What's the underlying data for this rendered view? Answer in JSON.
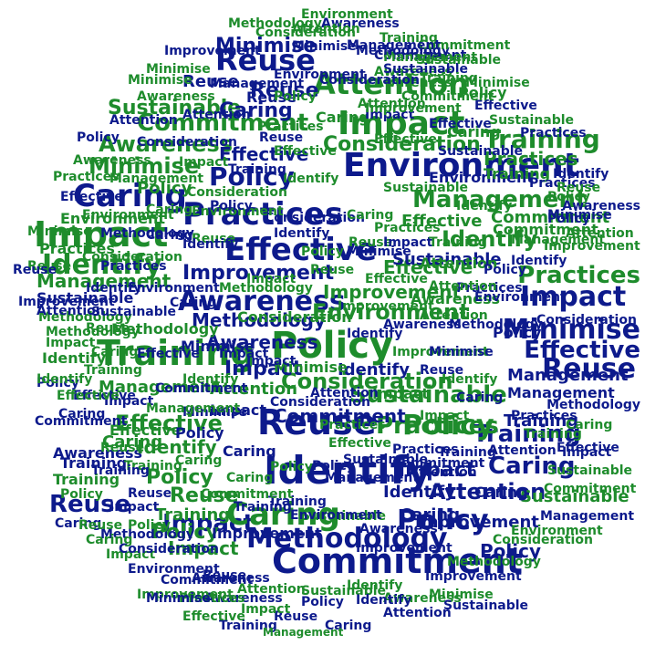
{
  "colors": {
    "blue": "#0d1a8c",
    "green": "#1e8c2c",
    "background": "#ffffff"
  },
  "words": [
    {
      "text": "Environment",
      "color": "blue"
    },
    {
      "text": "Commitment",
      "color": "blue"
    },
    {
      "text": "Identify",
      "color": "blue"
    },
    {
      "text": "Effective",
      "color": "blue"
    },
    {
      "text": "Practices",
      "color": "blue"
    },
    {
      "text": "Training",
      "color": "green"
    },
    {
      "text": "Policy",
      "color": "green"
    },
    {
      "text": "Impact",
      "color": "green"
    },
    {
      "text": "Reuse",
      "color": "blue"
    },
    {
      "text": "Caring",
      "color": "blue"
    },
    {
      "text": "Attention",
      "color": "green"
    },
    {
      "text": "Awareness",
      "color": "blue"
    },
    {
      "text": "Consideration",
      "color": "green"
    },
    {
      "text": "Management",
      "color": "green"
    },
    {
      "text": "Methodology",
      "color": "blue"
    },
    {
      "text": "Minimise",
      "color": "blue"
    },
    {
      "text": "Sustainable",
      "color": "green"
    },
    {
      "text": "Improvement",
      "color": "blue"
    },
    {
      "text": "Reuse",
      "color": "blue"
    },
    {
      "text": "Policy",
      "color": "blue"
    },
    {
      "text": "Impact",
      "color": "blue"
    },
    {
      "text": "Impact",
      "color": "blue"
    },
    {
      "text": "Caring",
      "color": "green"
    },
    {
      "text": "Policy",
      "color": "blue"
    },
    {
      "text": "Identify",
      "color": "green"
    },
    {
      "text": "Training",
      "color": "green"
    },
    {
      "text": "Sustainable",
      "color": "green"
    },
    {
      "text": "Reuse",
      "color": "blue"
    },
    {
      "text": "Attention",
      "color": "blue"
    },
    {
      "text": "Commitment",
      "color": "green"
    },
    {
      "text": "Minimise",
      "color": "blue"
    },
    {
      "text": "Effective",
      "color": "blue"
    },
    {
      "text": "Reuse",
      "color": "blue"
    },
    {
      "text": "Caring",
      "color": "blue"
    },
    {
      "text": "Training",
      "color": "blue"
    },
    {
      "text": "Practices",
      "color": "green"
    },
    {
      "text": "Management",
      "color": "green"
    },
    {
      "text": "Awareness",
      "color": "green"
    },
    {
      "text": "Policy",
      "color": "green"
    },
    {
      "text": "Impact",
      "color": "green"
    },
    {
      "text": "Effective",
      "color": "green"
    },
    {
      "text": "Identify",
      "color": "green"
    },
    {
      "text": "Minimise",
      "color": "green"
    },
    {
      "text": "Practices",
      "color": "green"
    },
    {
      "text": "Attention",
      "color": "green"
    },
    {
      "text": "Methodology",
      "color": "blue"
    },
    {
      "text": "Environment",
      "color": "green"
    },
    {
      "text": "Consideration",
      "color": "green"
    },
    {
      "text": "Improvement",
      "color": "blue"
    },
    {
      "text": "Sustainable",
      "color": "green"
    },
    {
      "text": "Commitment",
      "color": "green"
    },
    {
      "text": "Management",
      "color": "blue"
    },
    {
      "text": "Training",
      "color": "green"
    },
    {
      "text": "Caring",
      "color": "blue"
    },
    {
      "text": "Policy",
      "color": "green"
    },
    {
      "text": "Impact",
      "color": "blue"
    },
    {
      "text": "Reuse",
      "color": "blue"
    },
    {
      "text": "Awareness",
      "color": "blue"
    },
    {
      "text": "Identify",
      "color": "green"
    },
    {
      "text": "Attention",
      "color": "blue"
    },
    {
      "text": "Effective",
      "color": "green"
    },
    {
      "text": "Caring",
      "color": "green"
    },
    {
      "text": "Policy",
      "color": "blue"
    },
    {
      "text": "Minimise",
      "color": "blue"
    },
    {
      "text": "Practices",
      "color": "green"
    },
    {
      "text": "Reuse",
      "color": "blue"
    },
    {
      "text": "Training",
      "color": "blue"
    },
    {
      "text": "Impact",
      "color": "blue"
    },
    {
      "text": "Consideration",
      "color": "blue"
    },
    {
      "text": "Management",
      "color": "green"
    },
    {
      "text": "Caring",
      "color": "green"
    },
    {
      "text": "Commitment",
      "color": "blue"
    },
    {
      "text": "Effective",
      "color": "green"
    },
    {
      "text": "Awareness",
      "color": "blue"
    },
    {
      "text": "Identify",
      "color": "blue"
    },
    {
      "text": "Policy",
      "color": "blue"
    },
    {
      "text": "Sustainable",
      "color": "blue"
    },
    {
      "text": "Methodology",
      "color": "green"
    },
    {
      "text": "Environment",
      "color": "blue"
    },
    {
      "text": "Improvement",
      "color": "green"
    },
    {
      "text": "Training",
      "color": "green"
    },
    {
      "text": "Caring",
      "color": "blue"
    },
    {
      "text": "Reuse",
      "color": "green"
    },
    {
      "text": "Attention",
      "color": "green"
    },
    {
      "text": "Impact",
      "color": "green"
    },
    {
      "text": "Policy",
      "color": "green"
    },
    {
      "text": "Effective",
      "color": "blue"
    },
    {
      "text": "Practices",
      "color": "blue"
    },
    {
      "text": "Minimise",
      "color": "green"
    },
    {
      "text": "Sustainable",
      "color": "blue"
    },
    {
      "text": "Awareness",
      "color": "green"
    },
    {
      "text": "Identify",
      "color": "green"
    },
    {
      "text": "Caring",
      "color": "blue"
    },
    {
      "text": "Training",
      "color": "blue"
    },
    {
      "text": "Policy",
      "color": "green"
    },
    {
      "text": "Reuse",
      "color": "blue"
    },
    {
      "text": "Impact",
      "color": "green"
    },
    {
      "text": "Management",
      "color": "blue"
    },
    {
      "text": "Commitment",
      "color": "green"
    },
    {
      "text": "Attention",
      "color": "blue"
    },
    {
      "text": "Effective",
      "color": "green"
    },
    {
      "text": "Consideration",
      "color": "green"
    },
    {
      "text": "Environment",
      "color": "green"
    },
    {
      "text": "Methodology",
      "color": "green"
    },
    {
      "text": "Improvement",
      "color": "blue"
    },
    {
      "text": "Caring",
      "color": "green"
    },
    {
      "text": "Identify",
      "color": "blue"
    },
    {
      "text": "Policy",
      "color": "blue"
    },
    {
      "text": "Practices",
      "color": "green"
    },
    {
      "text": "Reuse",
      "color": "green"
    },
    {
      "text": "Impact",
      "color": "blue"
    },
    {
      "text": "Training",
      "color": "green"
    },
    {
      "text": "Minimise",
      "color": "blue"
    },
    {
      "text": "Awareness",
      "color": "blue"
    },
    {
      "text": "Sustainable",
      "color": "green"
    },
    {
      "text": "Attention",
      "color": "green"
    },
    {
      "text": "Effective",
      "color": "blue"
    },
    {
      "text": "Caring",
      "color": "blue"
    },
    {
      "text": "Policy",
      "color": "green"
    },
    {
      "text": "Identify",
      "color": "blue"
    },
    {
      "text": "Reuse",
      "color": "green"
    },
    {
      "text": "Impact",
      "color": "blue"
    },
    {
      "text": "Commitment",
      "color": "blue"
    },
    {
      "text": "Management",
      "color": "green"
    },
    {
      "text": "Training",
      "color": "blue"
    },
    {
      "text": "Practices",
      "color": "blue"
    },
    {
      "text": "Consideration",
      "color": "blue"
    },
    {
      "text": "Environment",
      "color": "blue"
    },
    {
      "text": "Methodology",
      "color": "blue"
    },
    {
      "text": "Improvement",
      "color": "green"
    },
    {
      "text": "Caring",
      "color": "green"
    },
    {
      "text": "Policy",
      "color": "blue"
    },
    {
      "text": "Minimise",
      "color": "green"
    },
    {
      "text": "Awareness",
      "color": "green"
    },
    {
      "text": "Effective",
      "color": "green"
    },
    {
      "text": "Identify",
      "color": "green"
    },
    {
      "text": "Attention",
      "color": "blue"
    },
    {
      "text": "Sustainable",
      "color": "blue"
    },
    {
      "text": "Reuse",
      "color": "blue"
    },
    {
      "text": "Impact",
      "color": "green"
    },
    {
      "text": "Training",
      "color": "green"
    },
    {
      "text": "Caring",
      "color": "blue"
    },
    {
      "text": "Policy",
      "color": "blue"
    },
    {
      "text": "Practices",
      "color": "green"
    },
    {
      "text": "Commitment",
      "color": "green"
    },
    {
      "text": "Management",
      "color": "blue"
    },
    {
      "text": "Effective",
      "color": "blue"
    },
    {
      "text": "Identify",
      "color": "blue"
    },
    {
      "text": "Minimise",
      "color": "blue"
    },
    {
      "text": "Awareness",
      "color": "blue"
    },
    {
      "text": "Environment",
      "color": "green"
    },
    {
      "text": "Consideration",
      "color": "green"
    },
    {
      "text": "Methodology",
      "color": "green"
    },
    {
      "text": "Improvement",
      "color": "blue"
    },
    {
      "text": "Attention",
      "color": "green"
    },
    {
      "text": "Sustainable",
      "color": "green"
    },
    {
      "text": "Reuse",
      "color": "green"
    },
    {
      "text": "Caring",
      "color": "green"
    },
    {
      "text": "Impact",
      "color": "blue"
    },
    {
      "text": "Policy",
      "color": "green"
    },
    {
      "text": "Training",
      "color": "blue"
    },
    {
      "text": "Identify",
      "color": "green"
    },
    {
      "text": "Effective",
      "color": "green"
    },
    {
      "text": "Practices",
      "color": "blue"
    },
    {
      "text": "Reuse",
      "color": "blue"
    },
    {
      "text": "Caring",
      "color": "blue"
    },
    {
      "text": "Impact",
      "color": "green"
    },
    {
      "text": "Policy",
      "color": "blue"
    },
    {
      "text": "Minimise",
      "color": "green"
    },
    {
      "text": "Awareness",
      "color": "green"
    },
    {
      "text": "Commitment",
      "color": "blue"
    },
    {
      "text": "Management",
      "color": "green"
    },
    {
      "text": "Attention",
      "color": "blue"
    },
    {
      "text": "Sustainable",
      "color": "blue"
    },
    {
      "text": "Training",
      "color": "green"
    },
    {
      "text": "Identify",
      "color": "blue"
    },
    {
      "text": "Effective",
      "color": "blue"
    },
    {
      "text": "Reuse",
      "color": "green"
    },
    {
      "text": "Caring",
      "color": "green"
    },
    {
      "text": "Policy",
      "color": "green"
    },
    {
      "text": "Impact",
      "color": "blue"
    },
    {
      "text": "Environment",
      "color": "blue"
    },
    {
      "text": "Consideration",
      "color": "blue"
    },
    {
      "text": "Methodology",
      "color": "blue"
    },
    {
      "text": "Improvement",
      "color": "green"
    },
    {
      "text": "Practices",
      "color": "green"
    },
    {
      "text": "Minimise",
      "color": "blue"
    },
    {
      "text": "Awareness",
      "color": "blue"
    },
    {
      "text": "Identify",
      "color": "green"
    },
    {
      "text": "Training",
      "color": "blue"
    },
    {
      "text": "Reuse",
      "color": "blue"
    },
    {
      "text": "Caring",
      "color": "blue"
    },
    {
      "text": "Policy",
      "color": "blue"
    },
    {
      "text": "Impact",
      "color": "green"
    },
    {
      "text": "Effective",
      "color": "green"
    },
    {
      "text": "Attention",
      "color": "green"
    },
    {
      "text": "Sustainable",
      "color": "green"
    },
    {
      "text": "Commitment",
      "color": "green"
    },
    {
      "text": "Management",
      "color": "blue"
    },
    {
      "text": "Identify",
      "color": "blue"
    },
    {
      "text": "Policy",
      "color": "green"
    },
    {
      "text": "Reuse",
      "color": "green"
    },
    {
      "text": "Caring",
      "color": "green"
    },
    {
      "text": "Impact",
      "color": "blue"
    },
    {
      "text": "Training",
      "color": "green"
    },
    {
      "text": "Environment",
      "color": "green"
    },
    {
      "text": "Consideration",
      "color": "green"
    },
    {
      "text": "Methodology",
      "color": "green"
    },
    {
      "text": "Improvement",
      "color": "blue"
    },
    {
      "text": "Practices",
      "color": "blue"
    },
    {
      "text": "Effective",
      "color": "blue"
    },
    {
      "text": "Minimise",
      "color": "green"
    },
    {
      "text": "Awareness",
      "color": "green"
    },
    {
      "text": "Attention",
      "color": "blue"
    },
    {
      "text": "Sustainable",
      "color": "blue"
    },
    {
      "text": "Identify",
      "color": "green"
    },
    {
      "text": "Policy",
      "color": "blue"
    },
    {
      "text": "Reuse",
      "color": "blue"
    },
    {
      "text": "Caring",
      "color": "blue"
    },
    {
      "text": "Impact",
      "color": "green"
    },
    {
      "text": "Training",
      "color": "blue"
    },
    {
      "text": "Commitment",
      "color": "blue"
    },
    {
      "text": "Management",
      "color": "green"
    },
    {
      "text": "Effective",
      "color": "green"
    },
    {
      "text": "Practices",
      "color": "green"
    },
    {
      "text": "Environment",
      "color": "blue"
    },
    {
      "text": "Consideration",
      "color": "blue"
    },
    {
      "text": "Methodology",
      "color": "blue"
    },
    {
      "text": "Improvement",
      "color": "green"
    },
    {
      "text": "Minimise",
      "color": "blue"
    },
    {
      "text": "Awareness",
      "color": "blue"
    },
    {
      "text": "Attention",
      "color": "green"
    },
    {
      "text": "Sustainable",
      "color": "green"
    },
    {
      "text": "Identify",
      "color": "blue"
    },
    {
      "text": "Policy",
      "color": "green"
    },
    {
      "text": "Reuse",
      "color": "green"
    },
    {
      "text": "Caring",
      "color": "green"
    },
    {
      "text": "Impact",
      "color": "blue"
    },
    {
      "text": "Training",
      "color": "green"
    },
    {
      "text": "Effective",
      "color": "blue"
    },
    {
      "text": "Practices",
      "color": "blue"
    },
    {
      "text": "Commitment",
      "color": "green"
    },
    {
      "text": "Management",
      "color": "blue"
    },
    {
      "text": "Environment",
      "color": "green"
    },
    {
      "text": "Consideration",
      "color": "green"
    },
    {
      "text": "Methodology",
      "color": "green"
    },
    {
      "text": "Improvement",
      "color": "blue"
    },
    {
      "text": "Minimise",
      "color": "green"
    },
    {
      "text": "Awareness",
      "color": "green"
    },
    {
      "text": "Attention",
      "color": "blue"
    },
    {
      "text": "Sustainable",
      "color": "blue"
    },
    {
      "text": "Identify",
      "color": "green"
    },
    {
      "text": "Policy",
      "color": "blue"
    },
    {
      "text": "Reuse",
      "color": "blue"
    },
    {
      "text": "Caring",
      "color": "blue"
    },
    {
      "text": "Impact",
      "color": "green"
    },
    {
      "text": "Training",
      "color": "blue"
    },
    {
      "text": "Effective",
      "color": "green"
    },
    {
      "text": "Practices",
      "color": "green"
    },
    {
      "text": "Commitment",
      "color": "blue"
    },
    {
      "text": "Management",
      "color": "green"
    },
    {
      "text": "Environment",
      "color": "blue"
    },
    {
      "text": "Consideration",
      "color": "blue"
    },
    {
      "text": "Methodology",
      "color": "blue"
    },
    {
      "text": "Improvement",
      "color": "green"
    },
    {
      "text": "Minimise",
      "color": "blue"
    },
    {
      "text": "Awareness",
      "color": "blue"
    },
    {
      "text": "Attention",
      "color": "green"
    },
    {
      "text": "Sustainable",
      "color": "green"
    },
    {
      "text": "Identify",
      "color": "blue"
    },
    {
      "text": "Policy",
      "color": "green"
    },
    {
      "text": "Reuse",
      "color": "green"
    },
    {
      "text": "Caring",
      "color": "green"
    },
    {
      "text": "Impact",
      "color": "blue"
    },
    {
      "text": "Training",
      "color": "green"
    },
    {
      "text": "Effective",
      "color": "blue"
    },
    {
      "text": "Practices",
      "color": "blue"
    },
    {
      "text": "Commitment",
      "color": "green"
    },
    {
      "text": "Management",
      "color": "blue"
    },
    {
      "text": "Environment",
      "color": "green"
    },
    {
      "text": "Consideration",
      "color": "green"
    },
    {
      "text": "Methodology",
      "color": "green"
    },
    {
      "text": "Improvement",
      "color": "blue"
    },
    {
      "text": "Minimise",
      "color": "green"
    },
    {
      "text": "Awareness",
      "color": "green"
    },
    {
      "text": "Attention",
      "color": "blue"
    },
    {
      "text": "Sustainable",
      "color": "blue"
    },
    {
      "text": "Identify",
      "color": "green"
    },
    {
      "text": "Policy",
      "color": "blue"
    },
    {
      "text": "Reuse",
      "color": "blue"
    },
    {
      "text": "Caring",
      "color": "blue"
    },
    {
      "text": "Impact",
      "color": "green"
    },
    {
      "text": "Training",
      "color": "blue"
    },
    {
      "text": "Effective",
      "color": "green"
    },
    {
      "text": "Practices",
      "color": "green"
    },
    {
      "text": "Commitment",
      "color": "blue"
    },
    {
      "text": "Management",
      "color": "green"
    },
    {
      "text": "Environment",
      "color": "blue"
    },
    {
      "text": "Consideration",
      "color": "blue"
    },
    {
      "text": "Methodology",
      "color": "blue"
    },
    {
      "text": "Improvement",
      "color": "green"
    },
    {
      "text": "Minimise",
      "color": "blue"
    },
    {
      "text": "Awareness",
      "color": "blue"
    },
    {
      "text": "Attention",
      "color": "green"
    },
    {
      "text": "Sustainable",
      "color": "green"
    },
    {
      "text": "Identify",
      "color": "blue"
    },
    {
      "text": "Policy",
      "color": "green"
    },
    {
      "text": "Reuse",
      "color": "green"
    },
    {
      "text": "Caring",
      "color": "green"
    },
    {
      "text": "Impact",
      "color": "blue"
    },
    {
      "text": "Training",
      "color": "green"
    }
  ]
}
